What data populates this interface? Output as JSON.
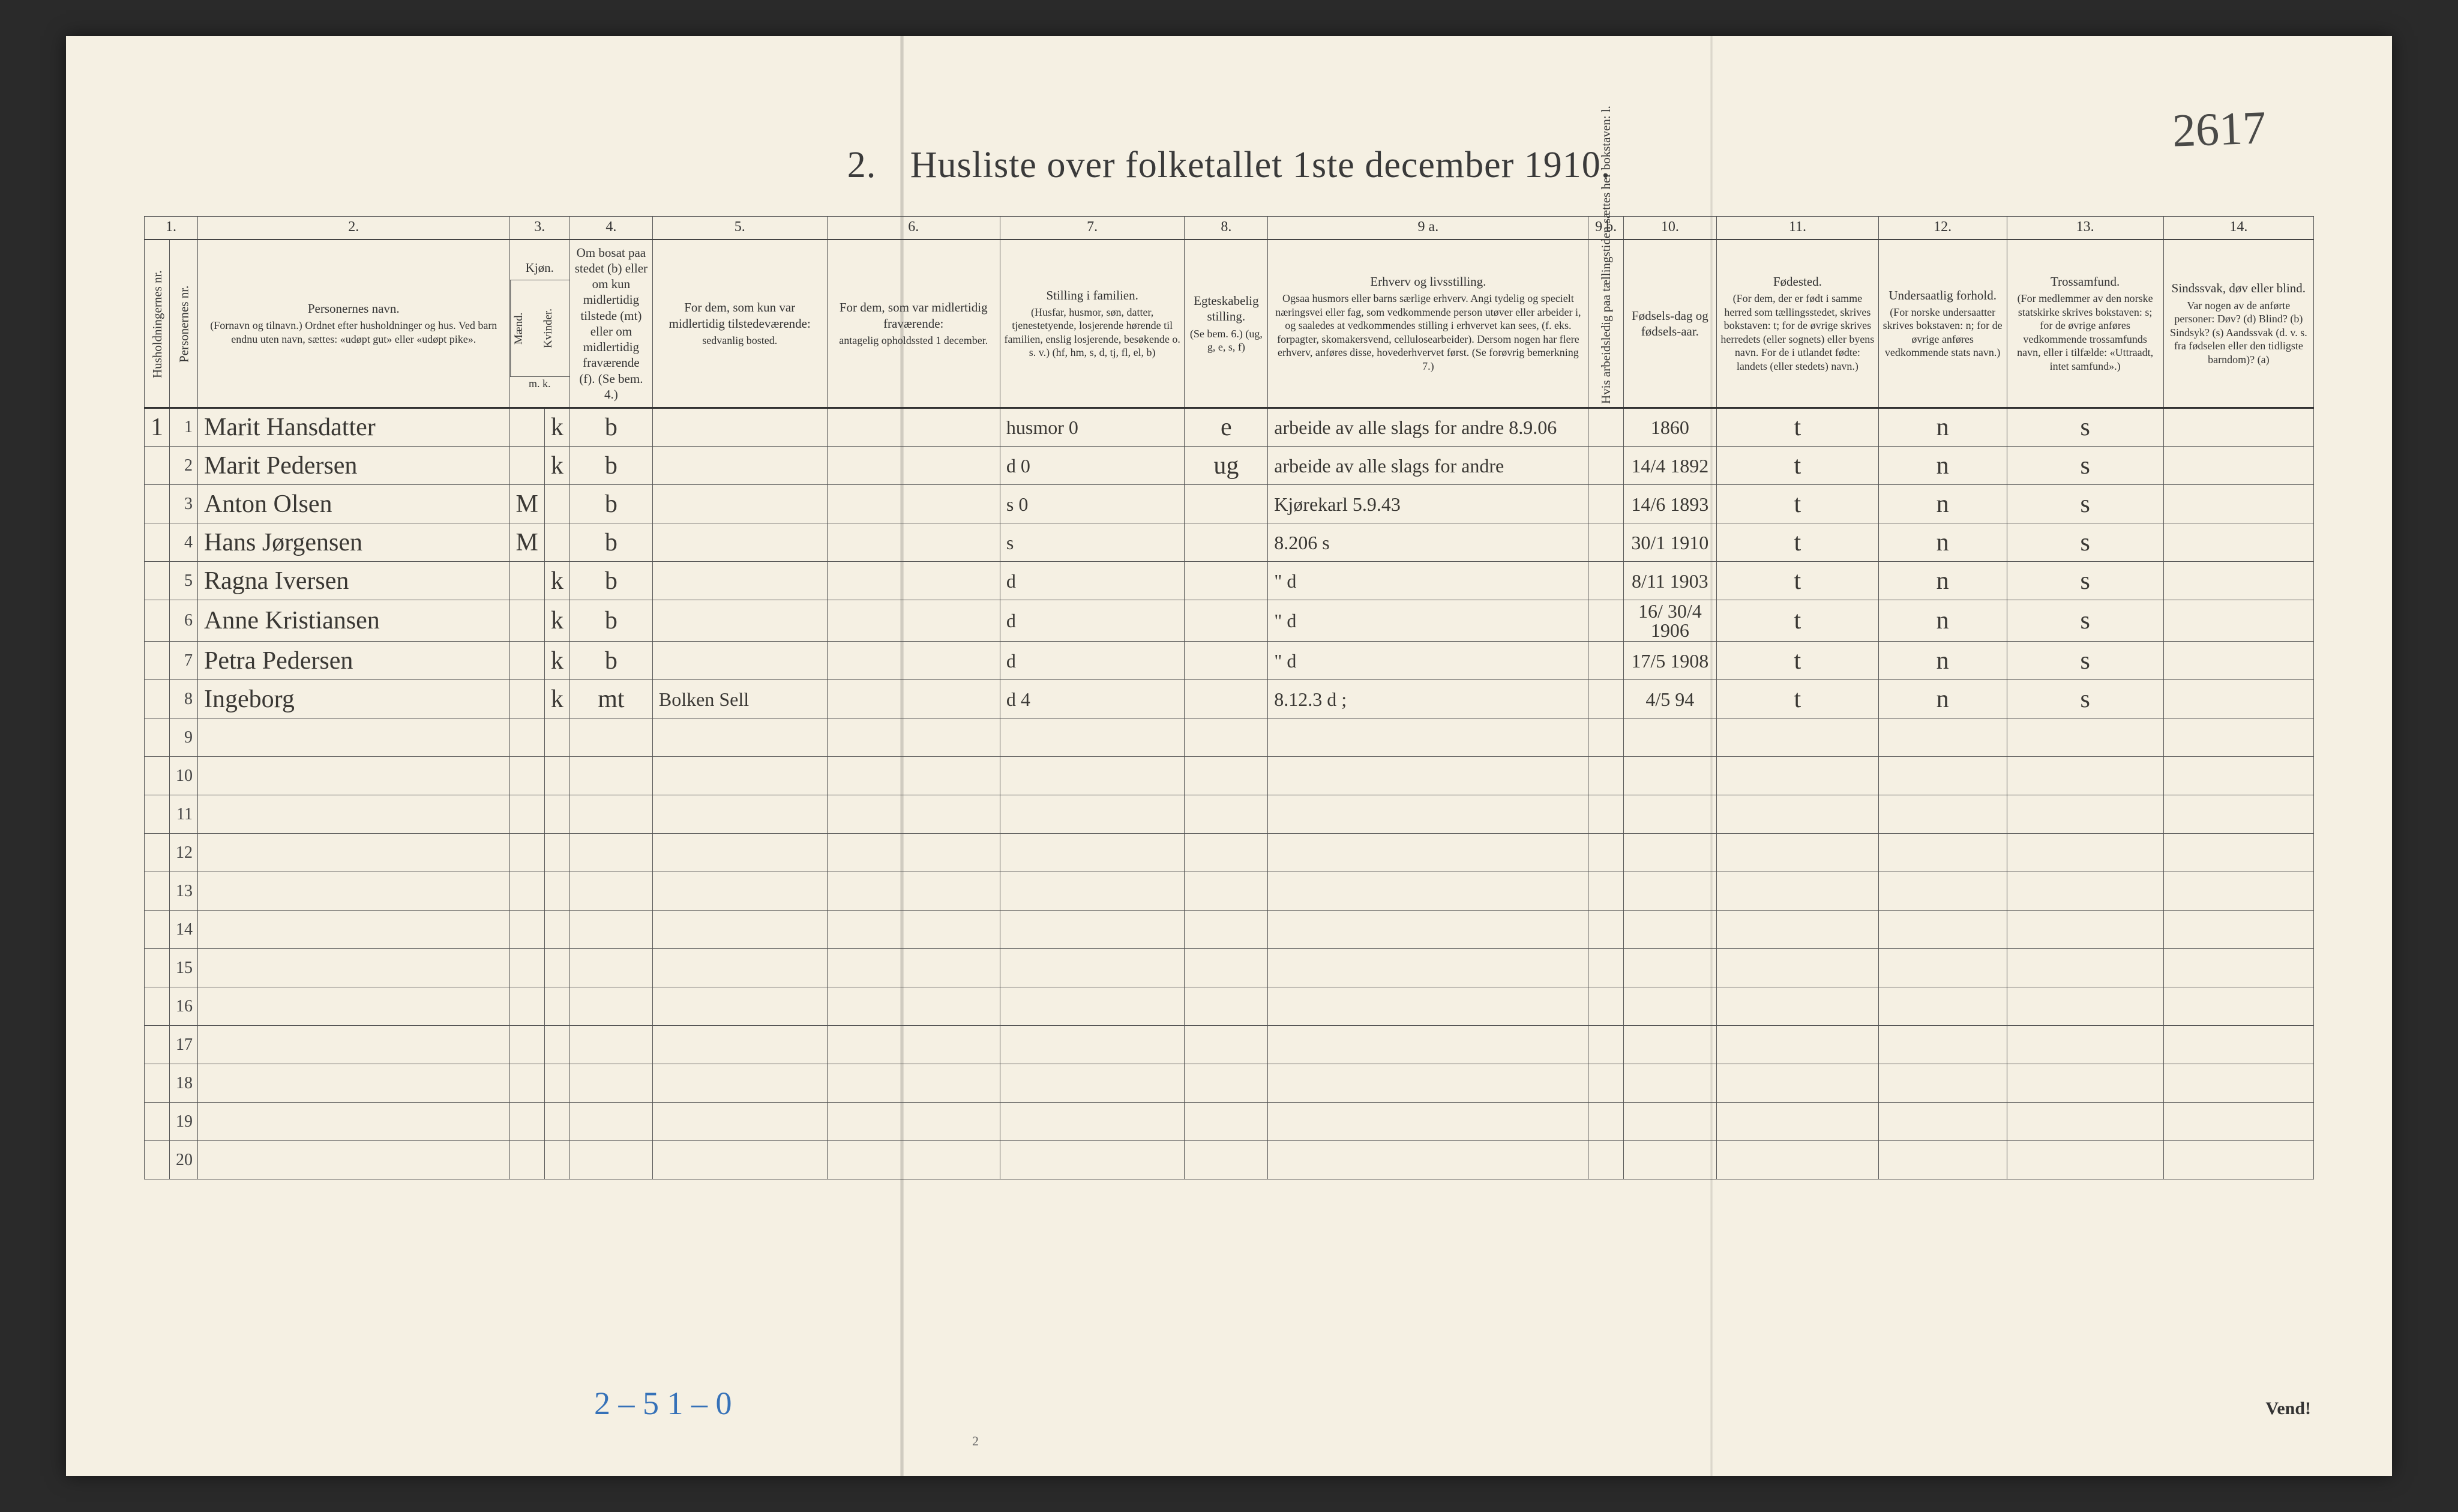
{
  "corner_annotation": "2617",
  "title_num": "2.",
  "title_text": "Husliste over folketallet 1ste december 1910.",
  "colnums": [
    "1.",
    "2.",
    "3.",
    "4.",
    "5.",
    "6.",
    "7.",
    "8.",
    "9 a.",
    "9 b.",
    "10.",
    "11.",
    "12.",
    "13.",
    "14."
  ],
  "headers": {
    "h1a": "Husholdningernes nr.",
    "h1b": "Personernes nr.",
    "h2": "Personernes navn.",
    "h2_sub": "(Fornavn og tilnavn.)\nOrdnet efter husholdninger og hus.\nVed barn endnu uten navn, sættes: «udøpt gut» eller «udøpt pike».",
    "h3": "Kjøn.",
    "h3a": "Mænd.",
    "h3b": "Kvinder.",
    "h3_sub": "m.  k.",
    "h4": "Om bosat paa stedet (b) eller om kun midlertidig tilstede (mt) eller om midlertidig fraværende (f). (Se bem. 4.)",
    "h5": "For dem, som kun var midlertidig tilstedeværende:",
    "h5_sub": "sedvanlig bosted.",
    "h6": "For dem, som var midlertidig fraværende:",
    "h6_sub": "antagelig opholdssted 1 december.",
    "h7": "Stilling i familien.",
    "h7_sub": "(Husfar, husmor, søn, datter, tjenestetyende, losjerende hørende til familien, enslig losjerende, besøkende o. s. v.)\n(hf, hm, s, d, tj, fl, el, b)",
    "h8": "Egteskabelig stilling.",
    "h8_sub": "(Se bem. 6.)\n(ug, g, e, s, f)",
    "h9a": "Erhverv og livsstilling.",
    "h9a_sub": "Ogsaa husmors eller barns særlige erhverv. Angi tydelig og specielt næringsvei eller fag, som vedkommende person utøver eller arbeider i, og saaledes at vedkommendes stilling i erhvervet kan sees, (f. eks. forpagter, skomakersvend, cellulosearbeider). Dersom nogen har flere erhverv, anføres disse, hovederhvervet først. (Se forøvrig bemerkning 7.)",
    "h9b": "Hvis arbeidsledig paa tællingstiden sættes her bokstaven: l.",
    "h10": "Fødsels-dag og fødsels-aar.",
    "h11": "Fødested.",
    "h11_sub": "(For dem, der er født i samme herred som tællingsstedet, skrives bokstaven: t; for de øvrige skrives herredets (eller sognets) eller byens navn. For de i utlandet fødte: landets (eller stedets) navn.)",
    "h12": "Undersaatlig forhold.",
    "h12_sub": "(For norske undersaatter skrives bokstaven: n; for de øvrige anføres vedkommende stats navn.)",
    "h13": "Trossamfund.",
    "h13_sub": "(For medlemmer av den norske statskirke skrives bokstaven: s; for de øvrige anføres vedkommende trossamfunds navn, eller i tilfælde: «Uttraadt, intet samfund».)",
    "h14": "Sindssvak, døv eller blind.",
    "h14_sub": "Var nogen av de anførte personer:\nDøv? (d)\nBlind? (b)\nSindsyk? (s)\nAandssvak (d. v. s. fra fødselen eller den tidligste barndom)? (a)"
  },
  "rows": [
    {
      "hh": "1",
      "pn": "1",
      "name": "Marit Hansdatter",
      "m": "",
      "k": "k",
      "b": "b",
      "c5": "",
      "c6": "",
      "c7": "husmor  0",
      "c8": "e",
      "c9a": "arbeide av alle slags for andre  8.9.06",
      "c9b": "",
      "c10": "1860",
      "c11": "t",
      "c12": "n",
      "c13": "s",
      "c14": ""
    },
    {
      "hh": "",
      "pn": "2",
      "name": "Marit Pedersen",
      "m": "",
      "k": "k",
      "b": "b",
      "c5": "",
      "c6": "",
      "c7": "d         0",
      "c8": "ug",
      "c9a": "arbeide av alle slags for andre",
      "c9b": "",
      "c10": "14/4 1892",
      "c11": "t",
      "c12": "n",
      "c13": "s",
      "c14": ""
    },
    {
      "hh": "",
      "pn": "3",
      "name": "Anton Olsen",
      "m": "M",
      "k": "",
      "b": "b",
      "c5": "",
      "c6": "",
      "c7": "s    0",
      "c8": "",
      "c9a": "Kjørekarl   5.9.43",
      "c9b": "",
      "c10": "14/6 1893",
      "c11": "t",
      "c12": "n",
      "c13": "s",
      "c14": ""
    },
    {
      "hh": "",
      "pn": "4",
      "name": "Hans Jørgensen",
      "m": "M",
      "k": "",
      "b": "b",
      "c5": "",
      "c6": "",
      "c7": "s",
      "c8": "",
      "c9a": "8.206 s",
      "c9b": "",
      "c10": "30/1 1910",
      "c11": "t",
      "c12": "n",
      "c13": "s",
      "c14": ""
    },
    {
      "hh": "",
      "pn": "5",
      "name": "Ragna Iversen",
      "m": "",
      "k": "k",
      "b": "b",
      "c5": "",
      "c6": "",
      "c7": "d",
      "c8": "",
      "c9a": "\"    d",
      "c9b": "",
      "c10": "8/11 1903",
      "c11": "t",
      "c12": "n",
      "c13": "s",
      "c14": ""
    },
    {
      "hh": "",
      "pn": "6",
      "name": "Anne Kristiansen",
      "m": "",
      "k": "k",
      "b": "b",
      "c5": "",
      "c6": "",
      "c7": "d",
      "c8": "",
      "c9a": "\"    d",
      "c9b": "",
      "c10": "16/ 30/4 1906",
      "c11": "t",
      "c12": "n",
      "c13": "s",
      "c14": ""
    },
    {
      "hh": "",
      "pn": "7",
      "name": "Petra Pedersen",
      "m": "",
      "k": "k",
      "b": "b",
      "c5": "",
      "c6": "",
      "c7": "d",
      "c8": "",
      "c9a": "\"    d",
      "c9b": "",
      "c10": "17/5 1908",
      "c11": "t",
      "c12": "n",
      "c13": "s",
      "c14": ""
    },
    {
      "hh": "",
      "pn": "8",
      "name": "Ingeborg",
      "m": "",
      "k": "k",
      "b": "mt",
      "c5": "Bolken Sell",
      "c6": "",
      "c7": "d    4",
      "c8": "",
      "c9a": "8.12.3 d     ;",
      "c9b": "",
      "c10": "4/5 94",
      "c11": "t",
      "c12": "n",
      "c13": "s",
      "c14": ""
    }
  ],
  "empty_row_nums": [
    "9",
    "10",
    "11",
    "12",
    "13",
    "14",
    "15",
    "16",
    "17",
    "18",
    "19",
    "20"
  ],
  "bottom_scribble": "2 – 5   1 – 0",
  "vend": "Vend!",
  "bottom_page": "2"
}
